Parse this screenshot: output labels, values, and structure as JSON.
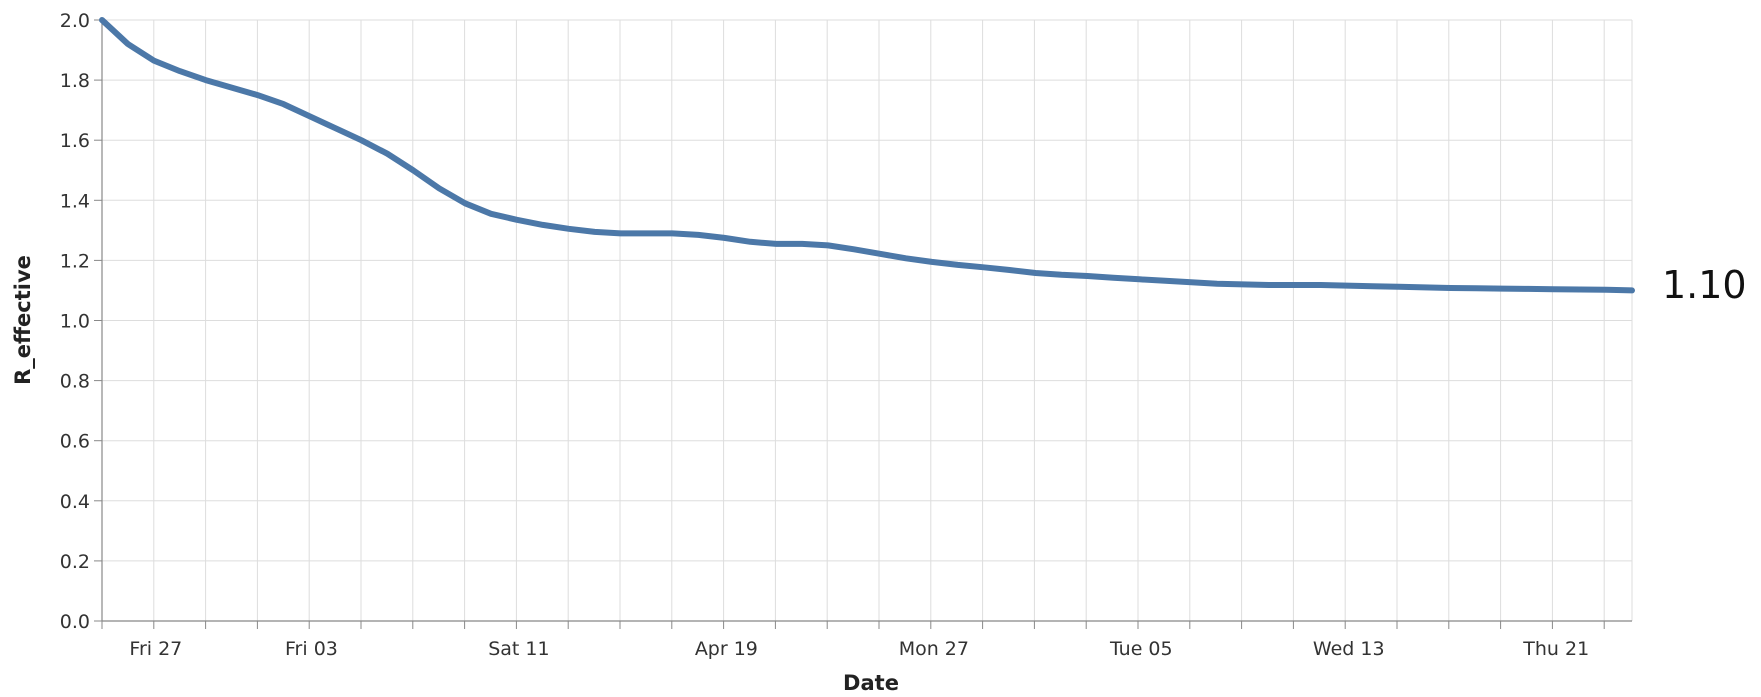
{
  "chart_data": {
    "type": "line",
    "xlabel": "Date",
    "ylabel": "R_effective",
    "ylim": [
      0,
      2.0
    ],
    "y_ticks": [
      "0.0",
      "0.2",
      "0.4",
      "0.6",
      "0.8",
      "1.0",
      "1.2",
      "1.4",
      "1.6",
      "1.8",
      "2.0"
    ],
    "x_tick_labels": [
      "Fri 27",
      "Fri 03",
      "Sat 11",
      "Apr 19",
      "Mon 27",
      "Tue 05",
      "Wed 13",
      "Thu 21"
    ],
    "grid": true,
    "line_color": "#4c78a8",
    "end_label": "1.10",
    "series": [
      {
        "x": [
          0,
          1,
          2,
          3,
          4,
          5,
          6,
          7,
          8,
          9,
          10,
          11,
          12,
          13,
          14,
          15,
          16,
          17,
          18,
          19,
          20,
          21,
          22,
          23,
          24,
          25,
          26,
          27,
          28,
          29,
          30,
          31,
          32,
          33,
          34,
          35,
          36,
          37,
          38,
          39,
          40,
          41,
          42,
          43,
          44,
          45,
          46,
          47,
          48,
          49,
          50,
          51,
          52,
          53,
          54,
          55,
          56,
          57,
          58,
          59
        ],
        "y": [
          2.0,
          1.92,
          1.865,
          1.83,
          1.8,
          1.775,
          1.75,
          1.72,
          1.68,
          1.64,
          1.6,
          1.555,
          1.5,
          1.44,
          1.39,
          1.355,
          1.335,
          1.318,
          1.305,
          1.295,
          1.29,
          1.29,
          1.29,
          1.285,
          1.275,
          1.262,
          1.255,
          1.255,
          1.25,
          1.237,
          1.222,
          1.207,
          1.195,
          1.185,
          1.177,
          1.168,
          1.158,
          1.152,
          1.148,
          1.142,
          1.137,
          1.132,
          1.127,
          1.122,
          1.12,
          1.118,
          1.118,
          1.118,
          1.116,
          1.114,
          1.112,
          1.11,
          1.108,
          1.107,
          1.106,
          1.105,
          1.104,
          1.103,
          1.102,
          1.1
        ]
      }
    ]
  }
}
